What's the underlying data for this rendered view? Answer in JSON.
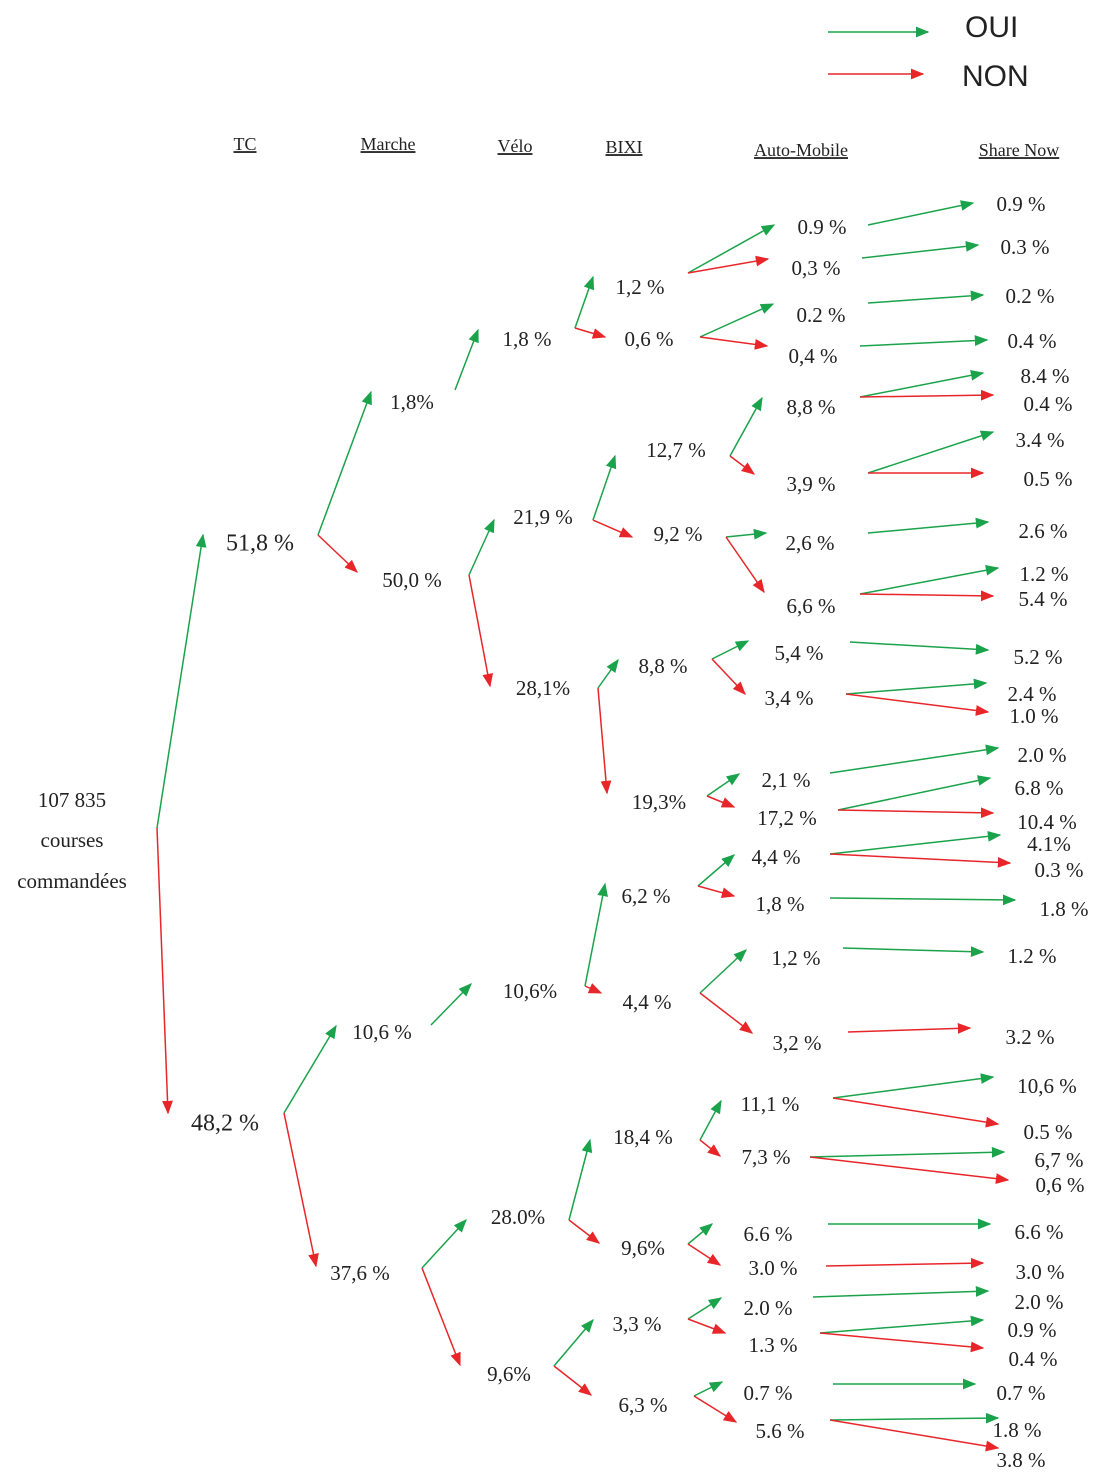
{
  "legend": {
    "yes": "OUI",
    "no": "NON"
  },
  "headers": [
    "TC",
    "Marche",
    "Vélo",
    "BIXI",
    "Auto-Mobile",
    "Share Now"
  ],
  "root": [
    "107 835",
    "courses",
    "commandées"
  ],
  "levels": [
    [
      "51,8 %",
      "48,2 %"
    ],
    [
      "1,8%",
      "50,0 %",
      "10,6 %",
      "37,6 %"
    ],
    [
      "1,8 %",
      "21,9 %",
      "28,1%",
      "10,6%",
      "28.0%",
      "9,6%"
    ],
    [
      "1,2 %",
      "0,6 %",
      "12,7 %",
      "9,2 %",
      "8,8 %",
      "19,3%",
      "6,2 %",
      "4,4 %",
      "18,4 %",
      "9,6%",
      "3,3 %",
      "6,3 %"
    ],
    [
      "0.9 %",
      "0,3 %",
      "0.2 %",
      "0,4 %",
      "8,8 %",
      "3,9 %",
      "2,6 %",
      "6,6 %",
      "5,4 %",
      "3,4 %",
      "2,1 %",
      "17,2 %",
      "4,4 %",
      "1,8 %",
      "1,2 %",
      "3,2 %",
      "11,1 %",
      "7,3 %",
      "6.6 %",
      "3.0 %",
      "2.0 %",
      "1.3 %",
      "0.7 %",
      "5.6 %"
    ],
    [
      "0.9 %",
      "0.3 %",
      "0.2 %",
      "0.4 %",
      "8.4 %",
      "0.4 %",
      "3.4 %",
      "0.5 %",
      "2.6 %",
      "1.2 %",
      "5.4 %",
      "5.2 %",
      "2.4 %",
      "1.0 %",
      "2.0 %",
      "6.8 %",
      "10.4 %",
      "4.1%",
      "0.3 %",
      "1.8 %",
      "1.2 %",
      "3.2 %",
      "10,6 %",
      "0.5 %",
      "6,7 %",
      "0,6 %",
      "6.6 %",
      "3.0 %",
      "2.0 %",
      "0.9 %",
      "0.4 %",
      "0.7 %",
      "1.8 %",
      "3.8 %"
    ]
  ]
}
